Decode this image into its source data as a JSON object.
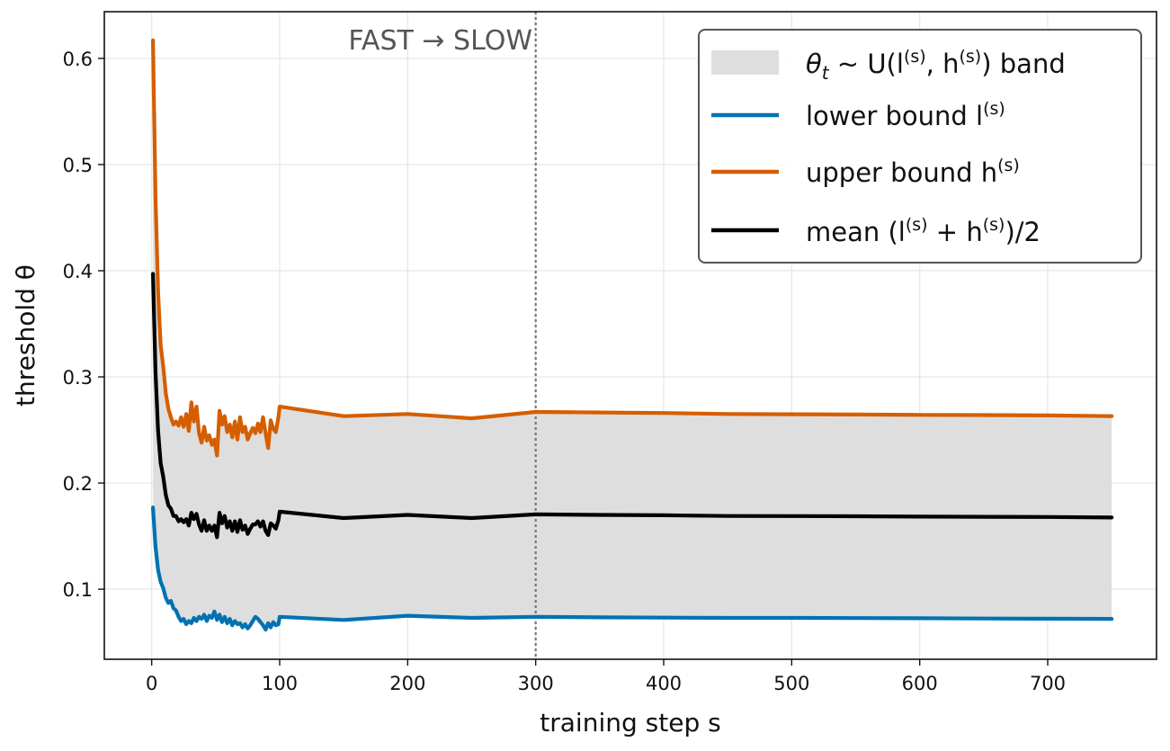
{
  "chart_data": {
    "type": "line",
    "xlabel": "training step s",
    "ylabel": "threshold θ",
    "xlim": [
      -37,
      785
    ],
    "ylim": [
      0.034,
      0.644
    ],
    "xticks": [
      0,
      100,
      200,
      300,
      400,
      500,
      600,
      700
    ],
    "yticks": [
      0.1,
      0.2,
      0.3,
      0.4,
      0.5,
      0.6
    ],
    "grid": true,
    "legend_position": "top-right",
    "annotations": [
      {
        "text": "FAST → SLOW",
        "x": 300
      }
    ],
    "band": {
      "name": "θt ~ U(l(s), h(s)) band",
      "color": "#dedede",
      "between": [
        "lower bound l(s)",
        "upper bound h(s)"
      ]
    },
    "series": [
      {
        "name": "lower bound l(s)",
        "color": "#0072b2",
        "x": [
          1,
          3,
          5,
          7,
          9,
          11,
          13,
          15,
          17,
          19,
          21,
          23,
          25,
          27,
          29,
          31,
          33,
          35,
          37,
          39,
          41,
          43,
          45,
          47,
          49,
          51,
          53,
          55,
          57,
          59,
          61,
          63,
          65,
          67,
          69,
          71,
          73,
          75,
          77,
          79,
          81,
          83,
          85,
          87,
          89,
          91,
          93,
          95,
          97,
          99,
          100,
          150,
          200,
          250,
          300,
          350,
          400,
          450,
          500,
          550,
          600,
          650,
          700,
          750
        ],
        "y": [
          0.177,
          0.14,
          0.118,
          0.107,
          0.101,
          0.092,
          0.087,
          0.089,
          0.082,
          0.08,
          0.074,
          0.07,
          0.072,
          0.067,
          0.07,
          0.068,
          0.073,
          0.07,
          0.074,
          0.072,
          0.076,
          0.07,
          0.075,
          0.073,
          0.079,
          0.071,
          0.076,
          0.069,
          0.074,
          0.068,
          0.072,
          0.066,
          0.07,
          0.067,
          0.068,
          0.064,
          0.067,
          0.063,
          0.066,
          0.07,
          0.074,
          0.072,
          0.069,
          0.066,
          0.062,
          0.068,
          0.064,
          0.069,
          0.066,
          0.067,
          0.074,
          0.071,
          0.075,
          0.073,
          0.074,
          0.0735,
          0.0732,
          0.073,
          0.073,
          0.0728,
          0.0726,
          0.0724,
          0.0722,
          0.072
        ]
      },
      {
        "name": "upper bound h(s)",
        "color": "#d55e00",
        "x": [
          1,
          3,
          5,
          7,
          9,
          11,
          13,
          15,
          17,
          19,
          21,
          23,
          25,
          27,
          29,
          31,
          33,
          35,
          37,
          39,
          41,
          43,
          45,
          47,
          49,
          51,
          53,
          55,
          57,
          59,
          61,
          63,
          65,
          67,
          69,
          71,
          73,
          75,
          77,
          79,
          81,
          83,
          85,
          87,
          89,
          91,
          93,
          95,
          97,
          99,
          100,
          150,
          200,
          250,
          300,
          350,
          400,
          450,
          500,
          550,
          600,
          650,
          700,
          750
        ],
        "y": [
          0.617,
          0.47,
          0.38,
          0.33,
          0.31,
          0.285,
          0.27,
          0.262,
          0.255,
          0.258,
          0.254,
          0.262,
          0.253,
          0.265,
          0.249,
          0.276,
          0.258,
          0.272,
          0.247,
          0.238,
          0.253,
          0.24,
          0.245,
          0.236,
          0.241,
          0.226,
          0.268,
          0.255,
          0.263,
          0.248,
          0.255,
          0.243,
          0.258,
          0.241,
          0.262,
          0.248,
          0.253,
          0.241,
          0.247,
          0.252,
          0.247,
          0.256,
          0.248,
          0.262,
          0.247,
          0.233,
          0.259,
          0.251,
          0.248,
          0.262,
          0.272,
          0.263,
          0.265,
          0.261,
          0.267,
          0.2665,
          0.266,
          0.265,
          0.2648,
          0.2645,
          0.2642,
          0.264,
          0.2637,
          0.263
        ]
      },
      {
        "name": "mean (l(s) + h(s))/2",
        "color": "#000000",
        "x": [
          1,
          3,
          5,
          7,
          9,
          11,
          13,
          15,
          17,
          19,
          21,
          23,
          25,
          27,
          29,
          31,
          33,
          35,
          37,
          39,
          41,
          43,
          45,
          47,
          49,
          51,
          53,
          55,
          57,
          59,
          61,
          63,
          65,
          67,
          69,
          71,
          73,
          75,
          77,
          79,
          81,
          83,
          85,
          87,
          89,
          91,
          93,
          95,
          97,
          99,
          100,
          150,
          200,
          250,
          300,
          350,
          400,
          450,
          500,
          550,
          600,
          650,
          700,
          750
        ],
        "y": [
          0.397,
          0.305,
          0.249,
          0.219,
          0.206,
          0.189,
          0.179,
          0.176,
          0.169,
          0.169,
          0.164,
          0.166,
          0.163,
          0.166,
          0.16,
          0.172,
          0.166,
          0.171,
          0.161,
          0.155,
          0.165,
          0.155,
          0.16,
          0.155,
          0.16,
          0.149,
          0.172,
          0.162,
          0.169,
          0.158,
          0.164,
          0.155,
          0.164,
          0.154,
          0.165,
          0.156,
          0.16,
          0.152,
          0.157,
          0.161,
          0.161,
          0.164,
          0.159,
          0.164,
          0.155,
          0.151,
          0.162,
          0.16,
          0.157,
          0.165,
          0.173,
          0.167,
          0.17,
          0.167,
          0.1705,
          0.17,
          0.1696,
          0.169,
          0.1689,
          0.1687,
          0.1684,
          0.1682,
          0.168,
          0.1675
        ]
      }
    ]
  },
  "legend": [
    {
      "key": "band",
      "label_main": "θ",
      "label_sub": "t",
      "label_rest": " ~ U(l",
      "sup1": "(s)",
      "label_mid": ", h",
      "sup2": "(s)",
      "label_end": ") band"
    },
    {
      "key": "lower",
      "label": "lower bound l",
      "sup": "(s)"
    },
    {
      "key": "upper",
      "label": "upper bound h",
      "sup": "(s)"
    },
    {
      "key": "mean",
      "label": "mean (l",
      "sup1": "(s)",
      "label_mid": " + h",
      "sup2": "(s)",
      "label_end": ")/2"
    }
  ]
}
